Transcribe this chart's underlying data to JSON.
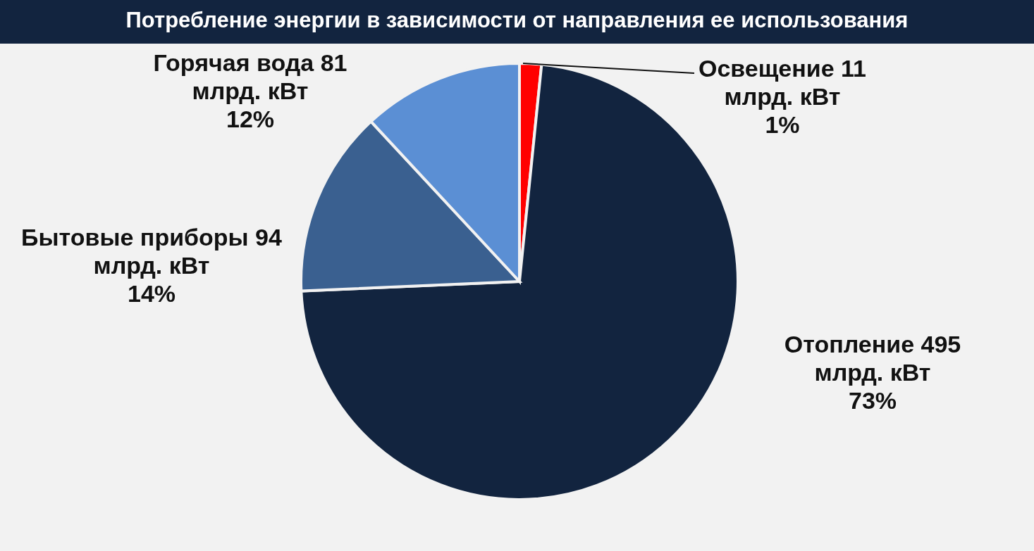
{
  "chart_data": {
    "type": "pie",
    "title": "Потребление энергии в зависимости от направления ее использования",
    "categories": [
      "Освещение",
      "Отопление",
      "Бытовые приборы",
      "Горячая вода"
    ],
    "values": [
      11,
      495,
      94,
      81
    ],
    "colors": [
      "#ff0000",
      "#12243f",
      "#3a6090",
      "#5b8fd4"
    ],
    "value_labels": [
      "11\nмлрд. кВт\n\n1%",
      "495\nмлрд. кВт\n\n73%",
      "94\nмлрд. кВт\n\n14%",
      "81\nмлрд. кВт\n\n12%"
    ]
  }
}
